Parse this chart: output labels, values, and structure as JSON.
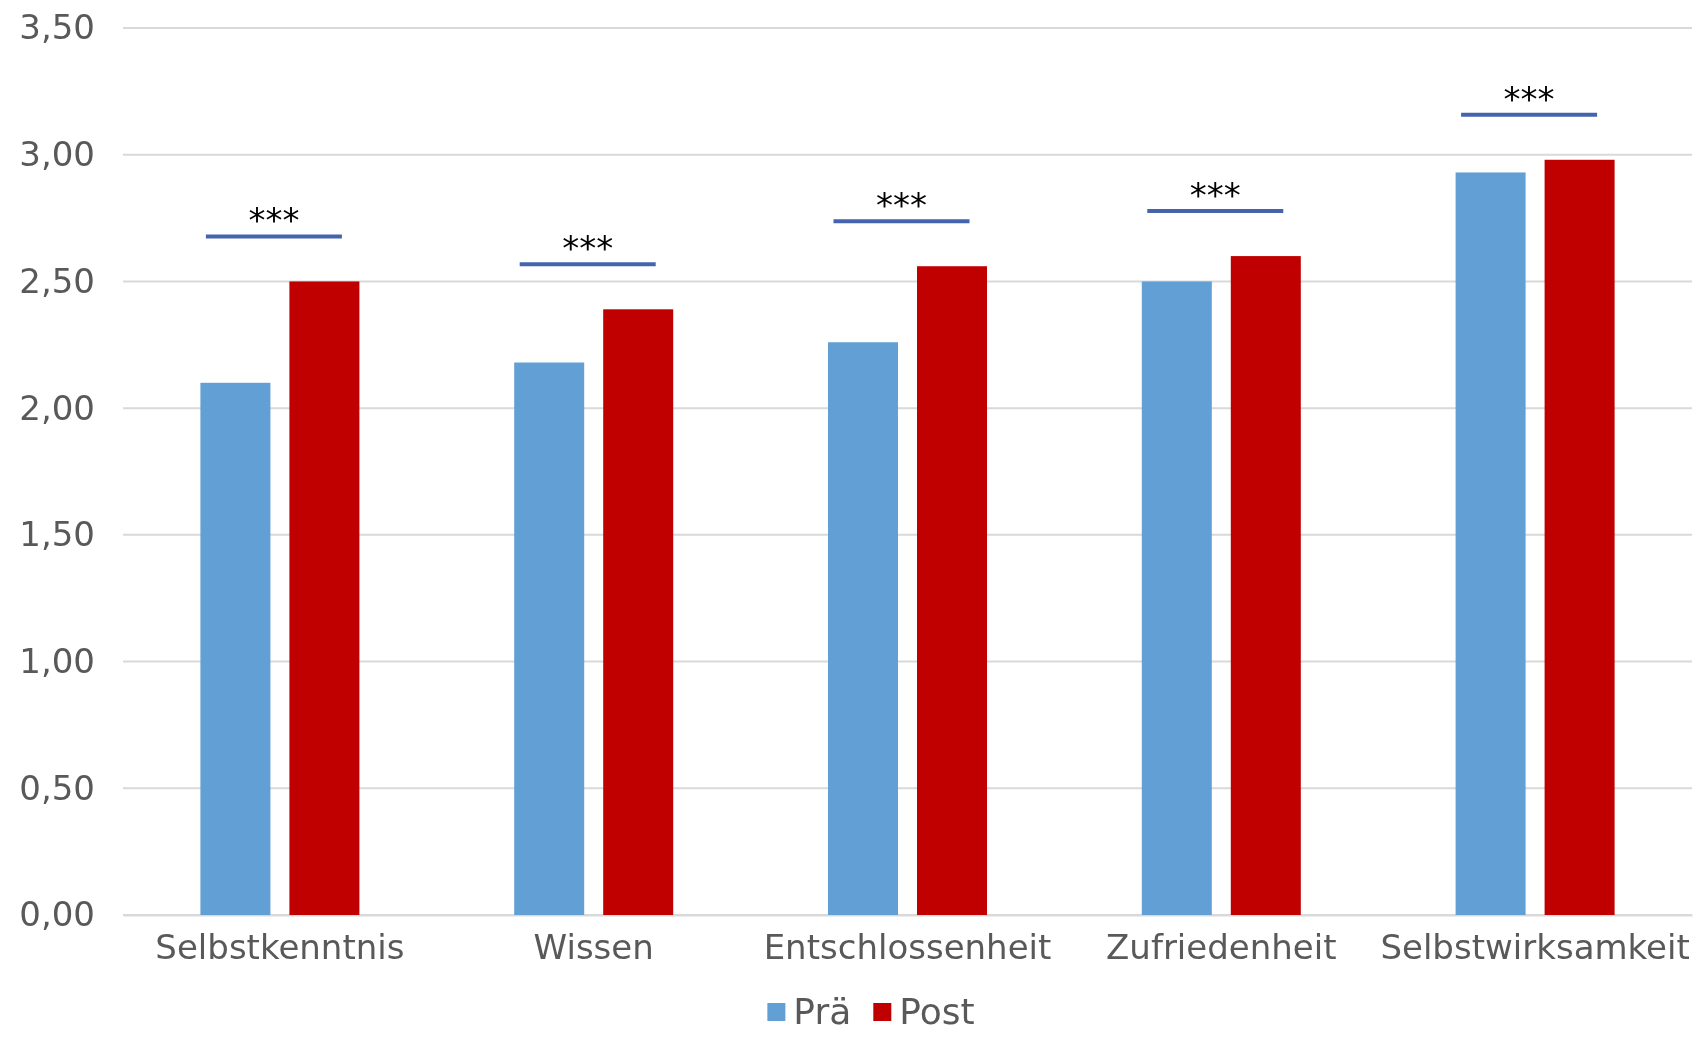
{
  "chart_data": {
    "type": "bar",
    "categories": [
      "Selbstkenntnis",
      "Wissen",
      "Entschlossenheit",
      "Zufriedenheit",
      "Selbstwirksamkeit"
    ],
    "series": [
      {
        "name": "Prä",
        "color": "#629fd4",
        "values": [
          2.1,
          2.18,
          2.26,
          2.5,
          2.93
        ]
      },
      {
        "name": "Post",
        "color": "#c00000",
        "values": [
          2.5,
          2.39,
          2.56,
          2.6,
          2.98
        ]
      }
    ],
    "ylim": [
      0,
      3.5
    ],
    "yticks": [
      {
        "value": 0,
        "label": "0,00"
      },
      {
        "value": 0.5,
        "label": "0,50"
      },
      {
        "value": 1,
        "label": "1,00"
      },
      {
        "value": 1.5,
        "label": "1,50"
      },
      {
        "value": 2,
        "label": "2,00"
      },
      {
        "value": 2.5,
        "label": "2,50"
      },
      {
        "value": 3,
        "label": "3,00"
      },
      {
        "value": 3.5,
        "label": "3,50"
      }
    ],
    "grid": "y",
    "legend": "bottom",
    "annotations": [
      "***",
      "***",
      "***",
      "***",
      "***"
    ]
  }
}
